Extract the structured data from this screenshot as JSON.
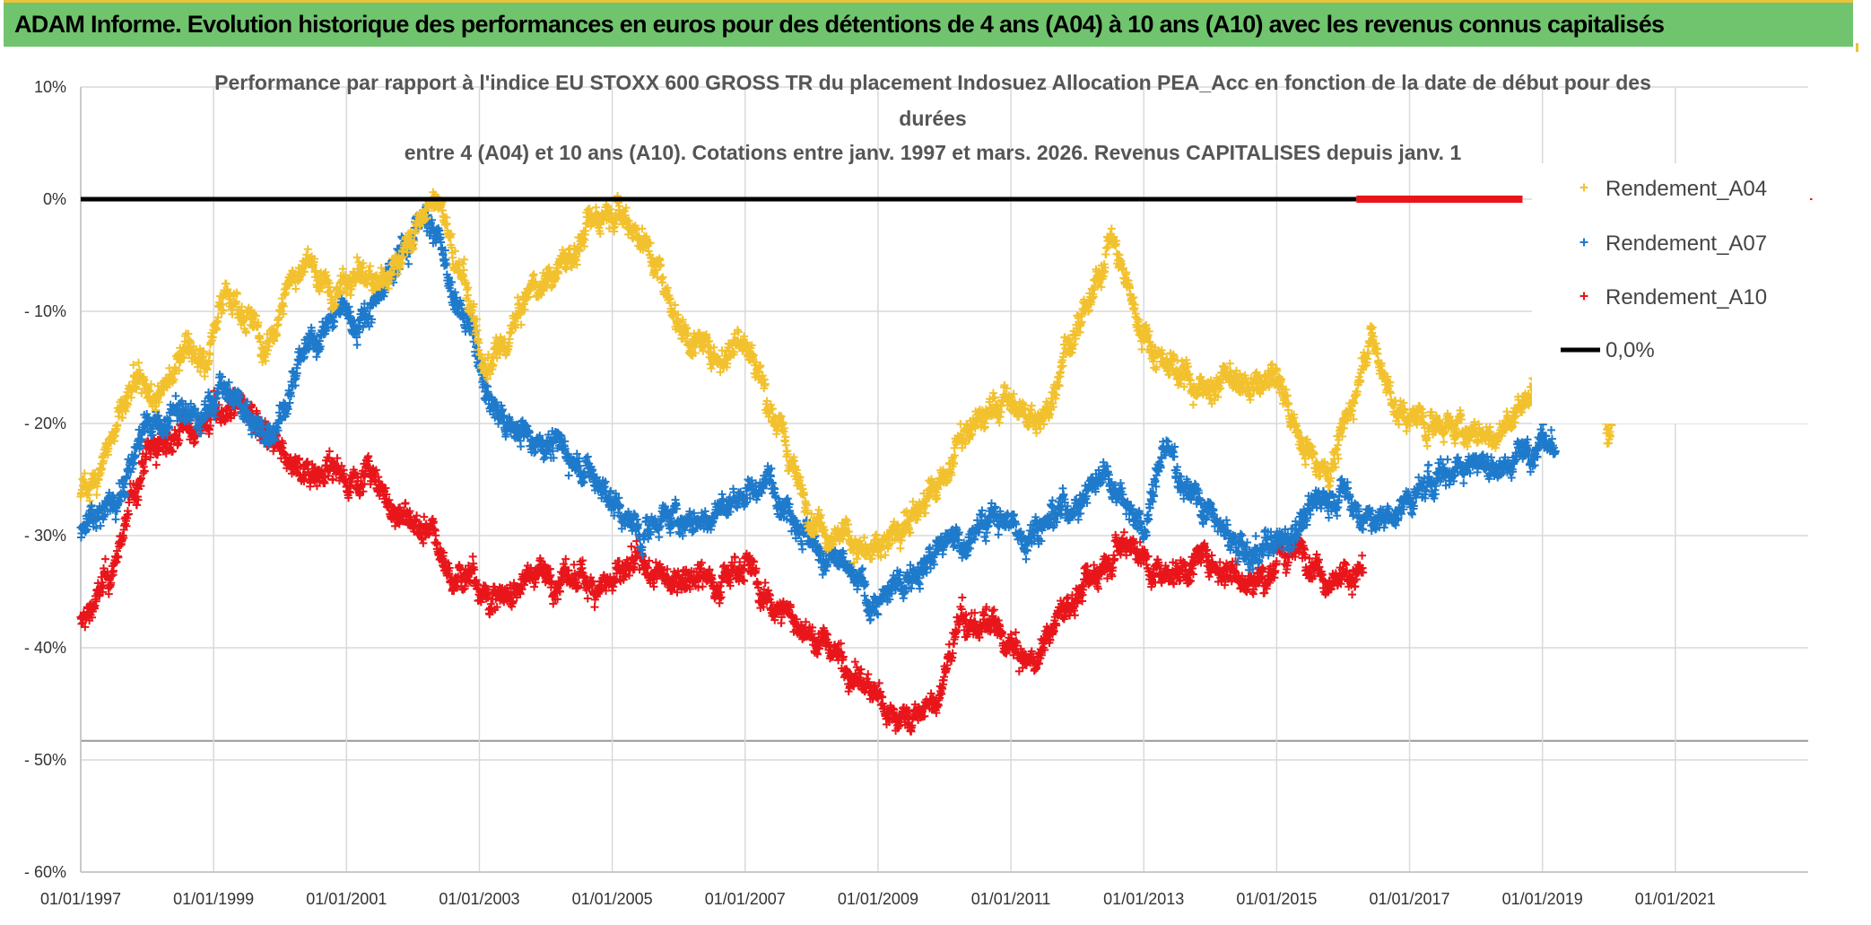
{
  "banner": {
    "title": "ADAM Informe. Evolution historique des performances en euros pour des détentions de 4 ans (A04) à 10 ans (A10) avec les revenus connus capitalisés"
  },
  "colors": {
    "banner_bg": "#70c46e",
    "A04": "#f2c12e",
    "A07": "#1f7acb",
    "A10": "#e8161b",
    "zero_line": "#000000",
    "grid": "#d9d9d9"
  },
  "chart_data": {
    "type": "scatter",
    "title_lines": [
      "Performance par rapport à l'indice EU STOXX 600 GROSS TR  du placement Indosuez Allocation PEA_Acc en fonction de la date de début pour des",
      "durées",
      "entre 4 (A04) et 10 ans (A10). Cotations entre janv. 1997 et mars. 2026. Revenus CAPITALISES depuis janv. 1"
    ],
    "xlabel": "",
    "ylabel": "",
    "x_tick_labels": [
      "01/01/1997",
      "01/01/1999",
      "01/01/2001",
      "01/01/2003",
      "01/01/2005",
      "01/01/2007",
      "01/01/2009",
      "01/01/2011",
      "01/01/2013",
      "01/01/2015",
      "01/01/2017",
      "01/01/2019",
      "01/01/2021"
    ],
    "xlim": [
      1997.0,
      2023.0
    ],
    "y_tick_labels": [
      "10%",
      "0%",
      "- 10%",
      "- 20%",
      "- 30%",
      "- 40%",
      "- 50%",
      "- 60%"
    ],
    "ylim": [
      -60,
      10
    ],
    "grid": true,
    "legend_position": "right",
    "series": [
      {
        "name": "Rendement_A04",
        "marker": "+",
        "anchors": [
          [
            1997.0,
            -27
          ],
          [
            1997.4,
            -22
          ],
          [
            1997.8,
            -17
          ],
          [
            1998.2,
            -18
          ],
          [
            1998.6,
            -12
          ],
          [
            1998.9,
            -15
          ],
          [
            1999.1,
            -8
          ],
          [
            1999.5,
            -10
          ],
          [
            1999.8,
            -14
          ],
          [
            2000.1,
            -8
          ],
          [
            2000.4,
            -5
          ],
          [
            2000.8,
            -9
          ],
          [
            2001.1,
            -6
          ],
          [
            2001.5,
            -8
          ],
          [
            2001.8,
            -5
          ],
          [
            2002.1,
            -2
          ],
          [
            2002.4,
            0
          ],
          [
            2002.6,
            -5
          ],
          [
            2002.9,
            -10
          ],
          [
            2003.1,
            -16
          ],
          [
            2003.4,
            -13
          ],
          [
            2003.7,
            -9
          ],
          [
            2004.0,
            -7
          ],
          [
            2004.4,
            -5
          ],
          [
            2004.7,
            -2
          ],
          [
            2005.0,
            0
          ],
          [
            2005.3,
            -2
          ],
          [
            2005.7,
            -6
          ],
          [
            2006.0,
            -11
          ],
          [
            2006.3,
            -13
          ],
          [
            2006.6,
            -14
          ],
          [
            2007.0,
            -12
          ],
          [
            2007.3,
            -17
          ],
          [
            2007.6,
            -22
          ],
          [
            2007.9,
            -27
          ],
          [
            2008.2,
            -29
          ],
          [
            2008.5,
            -30
          ],
          [
            2008.9,
            -32
          ],
          [
            2009.2,
            -30
          ],
          [
            2009.5,
            -28
          ],
          [
            2009.9,
            -26
          ],
          [
            2010.2,
            -22
          ],
          [
            2010.5,
            -20
          ],
          [
            2010.9,
            -18
          ],
          [
            2011.2,
            -19
          ],
          [
            2011.5,
            -20
          ],
          [
            2011.8,
            -13
          ],
          [
            2012.2,
            -10
          ],
          [
            2012.5,
            -3
          ],
          [
            2012.8,
            -9
          ],
          [
            2013.1,
            -13
          ],
          [
            2013.5,
            -15
          ],
          [
            2013.9,
            -17
          ],
          [
            2014.2,
            -16
          ],
          [
            2014.6,
            -17
          ],
          [
            2015.0,
            -16
          ],
          [
            2015.4,
            -22
          ],
          [
            2015.8,
            -24
          ],
          [
            2016.1,
            -19
          ],
          [
            2016.4,
            -12
          ],
          [
            2016.8,
            -19
          ],
          [
            2017.2,
            -20
          ],
          [
            2017.6,
            -20
          ],
          [
            2018.0,
            -21
          ],
          [
            2018.4,
            -21
          ],
          [
            2018.8,
            -17
          ],
          [
            2019.2,
            -16
          ],
          [
            2019.7,
            -14
          ],
          [
            2020.0,
            -21
          ],
          [
            2020.3,
            -12
          ]
        ]
      },
      {
        "name": "Rendement_A07",
        "marker": "+",
        "anchors": [
          [
            1997.0,
            -30
          ],
          [
            1997.3,
            -28
          ],
          [
            1997.6,
            -26
          ],
          [
            1997.9,
            -21
          ],
          [
            1998.2,
            -20
          ],
          [
            1998.5,
            -19
          ],
          [
            1998.8,
            -20
          ],
          [
            1999.1,
            -17
          ],
          [
            1999.4,
            -18
          ],
          [
            1999.7,
            -21
          ],
          [
            2000.0,
            -19
          ],
          [
            2000.3,
            -15
          ],
          [
            2000.6,
            -12
          ],
          [
            2000.9,
            -10
          ],
          [
            2001.2,
            -11
          ],
          [
            2001.5,
            -8
          ],
          [
            2001.8,
            -5
          ],
          [
            2002.0,
            -3
          ],
          [
            2002.2,
            -1
          ],
          [
            2002.4,
            -4
          ],
          [
            2002.6,
            -9
          ],
          [
            2002.9,
            -12
          ],
          [
            2003.1,
            -18
          ],
          [
            2003.4,
            -20
          ],
          [
            2003.8,
            -21
          ],
          [
            2004.2,
            -22
          ],
          [
            2004.6,
            -24
          ],
          [
            2005.0,
            -27
          ],
          [
            2005.4,
            -30
          ],
          [
            2005.8,
            -28
          ],
          [
            2006.2,
            -29
          ],
          [
            2006.6,
            -28
          ],
          [
            2007.0,
            -26
          ],
          [
            2007.4,
            -25
          ],
          [
            2007.8,
            -28
          ],
          [
            2008.1,
            -32
          ],
          [
            2008.5,
            -33
          ],
          [
            2008.9,
            -36
          ],
          [
            2009.3,
            -35
          ],
          [
            2009.6,
            -32
          ],
          [
            2010.0,
            -31
          ],
          [
            2010.4,
            -30
          ],
          [
            2010.8,
            -28
          ],
          [
            2011.2,
            -30
          ],
          [
            2011.6,
            -28
          ],
          [
            2012.0,
            -27
          ],
          [
            2012.4,
            -24
          ],
          [
            2012.7,
            -26
          ],
          [
            2013.0,
            -30
          ],
          [
            2013.3,
            -22
          ],
          [
            2013.6,
            -25
          ],
          [
            2013.9,
            -27
          ],
          [
            2014.2,
            -30
          ],
          [
            2014.6,
            -32
          ],
          [
            2015.0,
            -31
          ],
          [
            2015.3,
            -29
          ],
          [
            2015.6,
            -27
          ],
          [
            2016.0,
            -26
          ],
          [
            2016.4,
            -29
          ],
          [
            2016.8,
            -28
          ],
          [
            2017.2,
            -26
          ],
          [
            2017.6,
            -24
          ],
          [
            2018.0,
            -23
          ],
          [
            2018.4,
            -24
          ],
          [
            2018.8,
            -22
          ],
          [
            2019.2,
            -22
          ]
        ]
      },
      {
        "name": "Rendement_A10",
        "marker": "+",
        "anchors": [
          [
            1997.0,
            -38
          ],
          [
            1997.2,
            -36
          ],
          [
            1997.5,
            -33
          ],
          [
            1997.7,
            -28
          ],
          [
            1998.0,
            -23
          ],
          [
            1998.4,
            -21
          ],
          [
            1998.8,
            -20
          ],
          [
            1999.1,
            -19
          ],
          [
            1999.4,
            -18
          ],
          [
            1999.7,
            -21
          ],
          [
            2000.0,
            -23
          ],
          [
            2000.3,
            -24
          ],
          [
            2000.7,
            -24
          ],
          [
            2001.0,
            -25
          ],
          [
            2001.3,
            -24
          ],
          [
            2001.6,
            -27
          ],
          [
            2002.0,
            -29
          ],
          [
            2002.3,
            -30
          ],
          [
            2002.6,
            -34
          ],
          [
            2002.9,
            -33
          ],
          [
            2003.2,
            -36
          ],
          [
            2003.5,
            -35
          ],
          [
            2003.8,
            -33
          ],
          [
            2004.2,
            -34
          ],
          [
            2004.6,
            -34
          ],
          [
            2005.0,
            -34
          ],
          [
            2005.4,
            -33
          ],
          [
            2005.8,
            -34
          ],
          [
            2006.2,
            -33
          ],
          [
            2006.6,
            -34
          ],
          [
            2007.0,
            -32
          ],
          [
            2007.3,
            -36
          ],
          [
            2007.7,
            -37
          ],
          [
            2008.0,
            -39
          ],
          [
            2008.3,
            -40
          ],
          [
            2008.6,
            -42
          ],
          [
            2008.9,
            -44
          ],
          [
            2009.2,
            -46
          ],
          [
            2009.6,
            -46
          ],
          [
            2009.9,
            -45
          ],
          [
            2010.2,
            -38
          ],
          [
            2010.6,
            -38
          ],
          [
            2011.0,
            -40
          ],
          [
            2011.3,
            -42
          ],
          [
            2011.6,
            -38
          ],
          [
            2011.9,
            -36
          ],
          [
            2012.2,
            -34
          ],
          [
            2012.5,
            -31
          ],
          [
            2012.8,
            -30
          ],
          [
            2013.1,
            -33
          ],
          [
            2013.5,
            -33
          ],
          [
            2013.9,
            -32
          ],
          [
            2014.3,
            -33
          ],
          [
            2014.7,
            -34
          ],
          [
            2015.1,
            -32
          ],
          [
            2015.4,
            -31
          ],
          [
            2015.7,
            -33
          ],
          [
            2016.0,
            -34
          ],
          [
            2016.3,
            -33
          ]
        ]
      },
      {
        "name": "0,0%",
        "type": "line",
        "x": [
          1997.0,
          2016.2
        ],
        "y": [
          0,
          0
        ]
      }
    ],
    "red_zero_segment": {
      "x": [
        2016.2,
        2018.7
      ],
      "y": [
        0,
        0
      ]
    },
    "red_zero_marker": {
      "x": 2023.0,
      "y": 0
    }
  }
}
